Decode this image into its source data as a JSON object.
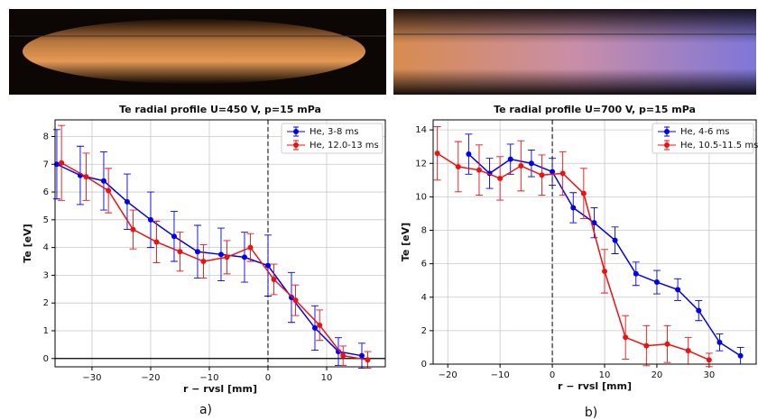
{
  "chart_data": [
    {
      "type": "line",
      "title": "Te radial profile U=450 V, p=15 mPa",
      "x_label": "r − rvsl [mm]",
      "y_label": "Te [eV]",
      "caption": "a)",
      "xlim": [
        -36.3,
        20
      ],
      "ylim": [
        -0.3,
        8.6
      ],
      "xticks": [
        {
          "value": -30,
          "label": "−30"
        },
        {
          "value": -20,
          "label": "−20"
        },
        {
          "value": -10,
          "label": "−10"
        },
        0,
        10
      ],
      "yticks": [
        0,
        1,
        2,
        3,
        4,
        5,
        6,
        7,
        8
      ],
      "grid": true,
      "hline": 0,
      "vline": 0,
      "legend": "upper right",
      "series": [
        {
          "name": "He, 3-8 ms",
          "color": "#0000ee",
          "x": [
            -36,
            -32,
            -28,
            -24,
            -20,
            -16,
            -12,
            -8,
            -4,
            0,
            4,
            8,
            12,
            16
          ],
          "values": [
            7.0,
            6.6,
            6.4,
            5.65,
            5.0,
            4.4,
            3.85,
            3.75,
            3.65,
            3.35,
            2.2,
            1.1,
            0.25,
            0.1
          ],
          "errors": [
            1.25,
            1.05,
            1.05,
            1.0,
            1.0,
            0.9,
            0.95,
            0.95,
            0.9,
            1.1,
            0.9,
            0.8,
            0.5,
            0.45
          ]
        },
        {
          "name": "He, 12.0-13 ms",
          "color": "#ee1111",
          "x": [
            -35.2,
            -31,
            -27.2,
            -23,
            -19,
            -15,
            -11,
            -7,
            -3,
            1,
            4.7,
            8.8,
            12.8,
            17
          ],
          "values": [
            7.05,
            6.55,
            6.05,
            4.65,
            4.2,
            3.85,
            3.5,
            3.65,
            4.0,
            2.85,
            2.1,
            1.2,
            0.1,
            -0.05
          ],
          "errors": [
            1.35,
            0.85,
            0.8,
            0.7,
            0.75,
            0.7,
            0.6,
            0.6,
            0.5,
            0.55,
            0.55,
            0.55,
            0.35,
            0.3
          ]
        }
      ]
    },
    {
      "type": "line",
      "title": "Te radial profile U=700 V, p=15 mPa",
      "x_label": "r − rvsl [mm]",
      "y_label": "Te [eV]",
      "caption": "b)",
      "xlim": [
        -22.8,
        39
      ],
      "ylim": [
        0,
        14.6
      ],
      "xticks": [
        {
          "value": -20,
          "label": "−20"
        },
        {
          "value": -10,
          "label": "−10"
        },
        0,
        10,
        20,
        30
      ],
      "yticks": [
        0,
        2,
        4,
        6,
        8,
        10,
        12,
        14
      ],
      "grid": true,
      "vline": 0,
      "legend": "upper right",
      "series": [
        {
          "name": "He, 4-6 ms",
          "color": "#0000ee",
          "x": [
            -16,
            -12,
            -8,
            -4,
            0,
            4,
            8,
            12,
            16,
            20,
            24,
            28,
            32,
            36
          ],
          "values": [
            12.55,
            11.4,
            12.25,
            12.0,
            11.5,
            9.35,
            8.45,
            7.4,
            5.4,
            4.9,
            4.45,
            3.2,
            1.3,
            0.5
          ],
          "errors": [
            1.2,
            0.9,
            0.9,
            0.8,
            0.8,
            0.9,
            0.9,
            0.8,
            0.7,
            0.7,
            0.65,
            0.6,
            0.5,
            0.5
          ]
        },
        {
          "name": "He, 10.5-11.5 ms",
          "color": "#ee1111",
          "x": [
            -22,
            -18,
            -14,
            -10,
            -6,
            -2,
            2,
            6,
            10,
            14,
            18,
            22,
            26,
            30
          ],
          "values": [
            12.6,
            11.8,
            11.6,
            11.1,
            11.85,
            11.3,
            11.4,
            10.2,
            5.55,
            1.6,
            1.1,
            1.2,
            0.8,
            0.25
          ],
          "errors": [
            1.6,
            1.5,
            1.5,
            1.3,
            1.5,
            1.2,
            1.3,
            1.5,
            1.3,
            1.3,
            1.2,
            1.1,
            0.8,
            0.4
          ]
        }
      ]
    }
  ]
}
